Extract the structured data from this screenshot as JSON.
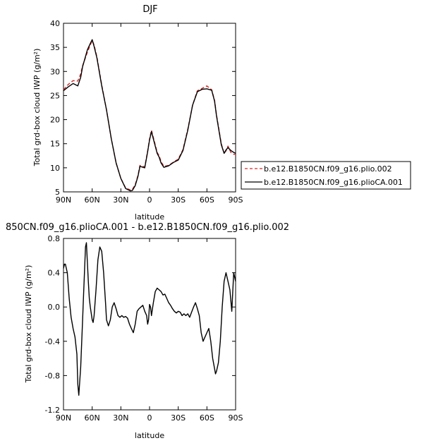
{
  "chart_data": [
    {
      "type": "line",
      "title": "DJF",
      "xlabel": "latitude",
      "ylabel": "Total grd-box cloud IWP (g/m²)",
      "x_tick_labels": [
        "90N",
        "60N",
        "30N",
        "0",
        "30S",
        "60S",
        "90S"
      ],
      "x_tick_values": [
        90,
        60,
        30,
        0,
        -30,
        -60,
        -90
      ],
      "xlim": [
        90,
        -90
      ],
      "ylim": [
        5,
        40
      ],
      "y_ticks": [
        "5",
        "10",
        "15",
        "20",
        "25",
        "30",
        "35",
        "40"
      ],
      "legend_position": "right",
      "x": [
        90,
        85,
        80,
        75,
        72,
        70,
        65,
        62,
        60,
        58,
        55,
        50,
        45,
        40,
        35,
        30,
        25,
        20,
        18,
        15,
        12,
        10,
        5,
        2,
        0,
        -2,
        -5,
        -8,
        -10,
        -12,
        -15,
        -20,
        -25,
        -30,
        -35,
        -40,
        -45,
        -50,
        -55,
        -60,
        -65,
        -68,
        -70,
        -75,
        -78,
        -80,
        -82,
        -85,
        -88,
        -90
      ],
      "series": [
        {
          "name": "b.e12.B1850CN.f09_g16.plio.002",
          "color": "#d62728",
          "dash": "dashed",
          "values": [
            26.2,
            27.3,
            28.1,
            28.0,
            29.5,
            31.2,
            34.0,
            35.5,
            36.4,
            35.5,
            33.0,
            27.2,
            22.0,
            16.0,
            11.0,
            7.8,
            5.8,
            5.4,
            5.5,
            6.5,
            8.5,
            10.5,
            10.2,
            13.5,
            16.0,
            17.8,
            15.5,
            13.2,
            12.5,
            11.3,
            10.3,
            10.5,
            11.2,
            11.8,
            13.8,
            18.0,
            23.0,
            26.0,
            26.5,
            27.0,
            26.2,
            24.0,
            21.0,
            15.0,
            13.0,
            13.5,
            14.5,
            13.2,
            12.8,
            12.8
          ]
        },
        {
          "name": "b.e12.B1850CN.f09_g16.plioCA.001",
          "color": "#000000",
          "dash": "solid",
          "values": [
            26.0,
            26.8,
            27.5,
            27.0,
            28.8,
            31.0,
            34.5,
            35.8,
            36.6,
            35.2,
            32.8,
            27.0,
            22.0,
            16.0,
            11.0,
            7.8,
            5.7,
            5.2,
            5.3,
            6.3,
            8.3,
            10.3,
            10.0,
            13.3,
            15.8,
            17.5,
            15.2,
            13.0,
            12.2,
            11.0,
            10.1,
            10.4,
            11.1,
            11.6,
            13.6,
            17.8,
            23.0,
            25.8,
            26.3,
            26.4,
            26.1,
            23.8,
            20.8,
            14.8,
            13.0,
            13.7,
            14.2,
            13.6,
            13.2,
            13.0
          ]
        }
      ]
    },
    {
      "type": "line",
      "title": "850CN.f09_g16.plioCA.001 - b.e12.B1850CN.f09_g16.plio.002",
      "xlabel": "latitude",
      "ylabel": "Total grd-box cloud IWP (g/m²)",
      "x_tick_labels": [
        "90N",
        "60N",
        "30N",
        "0",
        "30S",
        "60S",
        "90S"
      ],
      "x_tick_values": [
        90,
        60,
        30,
        0,
        -30,
        -60,
        -90
      ],
      "xlim": [
        90,
        -90
      ],
      "ylim": [
        -1.2,
        0.8
      ],
      "y_ticks": [
        "-1.2",
        "-0.8",
        "-0.4",
        "0.0",
        "0.4",
        "0.8"
      ],
      "x": [
        90,
        89,
        88,
        86,
        84,
        82,
        80,
        78,
        76,
        75,
        74,
        72,
        70,
        69,
        67,
        66,
        64,
        63,
        62,
        60,
        59,
        58,
        56,
        54,
        52,
        50,
        48,
        46,
        45,
        43,
        41,
        39,
        37,
        35,
        33,
        31,
        29,
        27,
        25,
        23,
        21,
        19,
        17,
        15,
        13,
        11,
        9,
        7,
        5,
        3,
        2,
        1,
        0,
        -1,
        -2,
        -4,
        -6,
        -8,
        -10,
        -12,
        -14,
        -16,
        -18,
        -20,
        -22,
        -24,
        -26,
        -28,
        -30,
        -32,
        -34,
        -36,
        -38,
        -40,
        -42,
        -44,
        -46,
        -48,
        -50,
        -52,
        -54,
        -56,
        -58,
        -60,
        -62,
        -64,
        -66,
        -68,
        -69,
        -70,
        -72,
        -74,
        -76,
        -78,
        -80,
        -82,
        -84,
        -86,
        -88,
        -90
      ],
      "series": [
        {
          "name": "",
          "color": "#000000",
          "dash": "solid",
          "values": [
            0.45,
            0.5,
            0.5,
            0.4,
            0.1,
            -0.12,
            -0.25,
            -0.35,
            -0.55,
            -0.9,
            -1.03,
            -0.7,
            -0.15,
            0.15,
            0.7,
            0.75,
            0.3,
            0.1,
            0.0,
            -0.15,
            -0.18,
            -0.1,
            0.2,
            0.55,
            0.7,
            0.65,
            0.4,
            0.05,
            -0.15,
            -0.22,
            -0.15,
            0.0,
            0.05,
            -0.02,
            -0.1,
            -0.12,
            -0.1,
            -0.12,
            -0.11,
            -0.13,
            -0.2,
            -0.25,
            -0.3,
            -0.2,
            -0.05,
            -0.02,
            0.0,
            0.02,
            -0.05,
            -0.1,
            -0.2,
            -0.15,
            0.03,
            0.0,
            -0.1,
            0.05,
            0.18,
            0.22,
            0.2,
            0.18,
            0.14,
            0.15,
            0.1,
            0.05,
            0.02,
            -0.02,
            -0.05,
            -0.07,
            -0.05,
            -0.06,
            -0.1,
            -0.08,
            -0.1,
            -0.08,
            -0.12,
            -0.06,
            0.0,
            0.05,
            -0.02,
            -0.1,
            -0.3,
            -0.4,
            -0.35,
            -0.3,
            -0.25,
            -0.4,
            -0.6,
            -0.72,
            -0.78,
            -0.75,
            -0.65,
            -0.4,
            0.0,
            0.3,
            0.4,
            0.3,
            0.2,
            -0.05,
            0.4,
            0.3
          ]
        }
      ]
    }
  ]
}
